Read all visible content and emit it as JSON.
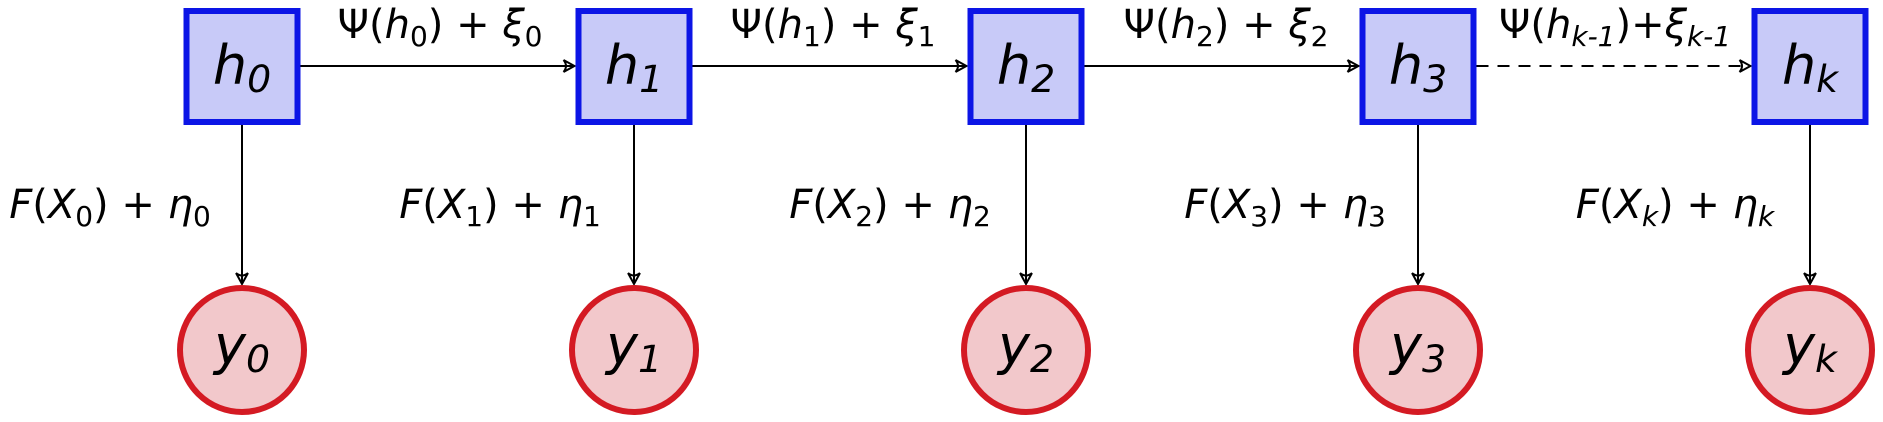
{
  "colors": {
    "hidden_fill": "#c8caf8",
    "hidden_stroke": "#0c15e6",
    "observed_fill": "#f2c8cb",
    "observed_stroke": "#d41a23"
  },
  "hidden_nodes": [
    {
      "base": "h",
      "sub": "0"
    },
    {
      "base": "h",
      "sub": "1"
    },
    {
      "base": "h",
      "sub": "2"
    },
    {
      "base": "h",
      "sub": "3"
    },
    {
      "base": "h",
      "sub": "k"
    }
  ],
  "observed_nodes": [
    {
      "base": "y",
      "sub": "0"
    },
    {
      "base": "y",
      "sub": "1"
    },
    {
      "base": "y",
      "sub": "2"
    },
    {
      "base": "y",
      "sub": "3"
    },
    {
      "base": "y",
      "sub": "k"
    }
  ],
  "transitions": [
    {
      "fn": "Ψ",
      "arg": "h",
      "arg_sub": "0",
      "noise": "ξ",
      "noise_sub": "0",
      "style": "solid"
    },
    {
      "fn": "Ψ",
      "arg": "h",
      "arg_sub": "1",
      "noise": "ξ",
      "noise_sub": "1",
      "style": "solid"
    },
    {
      "fn": "Ψ",
      "arg": "h",
      "arg_sub": "2",
      "noise": "ξ",
      "noise_sub": "2",
      "style": "solid"
    },
    {
      "fn": "Ψ",
      "arg": "h",
      "arg_sub": "k-1",
      "noise": "ξ",
      "noise_sub": "k-1",
      "style": "dashed"
    }
  ],
  "emissions": [
    {
      "fn": "F",
      "arg": "X",
      "arg_sub": "0",
      "noise": "η",
      "noise_sub": "0"
    },
    {
      "fn": "F",
      "arg": "X",
      "arg_sub": "1",
      "noise": "η",
      "noise_sub": "1"
    },
    {
      "fn": "F",
      "arg": "X",
      "arg_sub": "2",
      "noise": "η",
      "noise_sub": "2"
    },
    {
      "fn": "F",
      "arg": "X",
      "arg_sub": "3",
      "noise": "η",
      "noise_sub": "3"
    },
    {
      "fn": "F",
      "arg": "X",
      "arg_sub": "k",
      "noise": "η",
      "noise_sub": "k"
    }
  ]
}
